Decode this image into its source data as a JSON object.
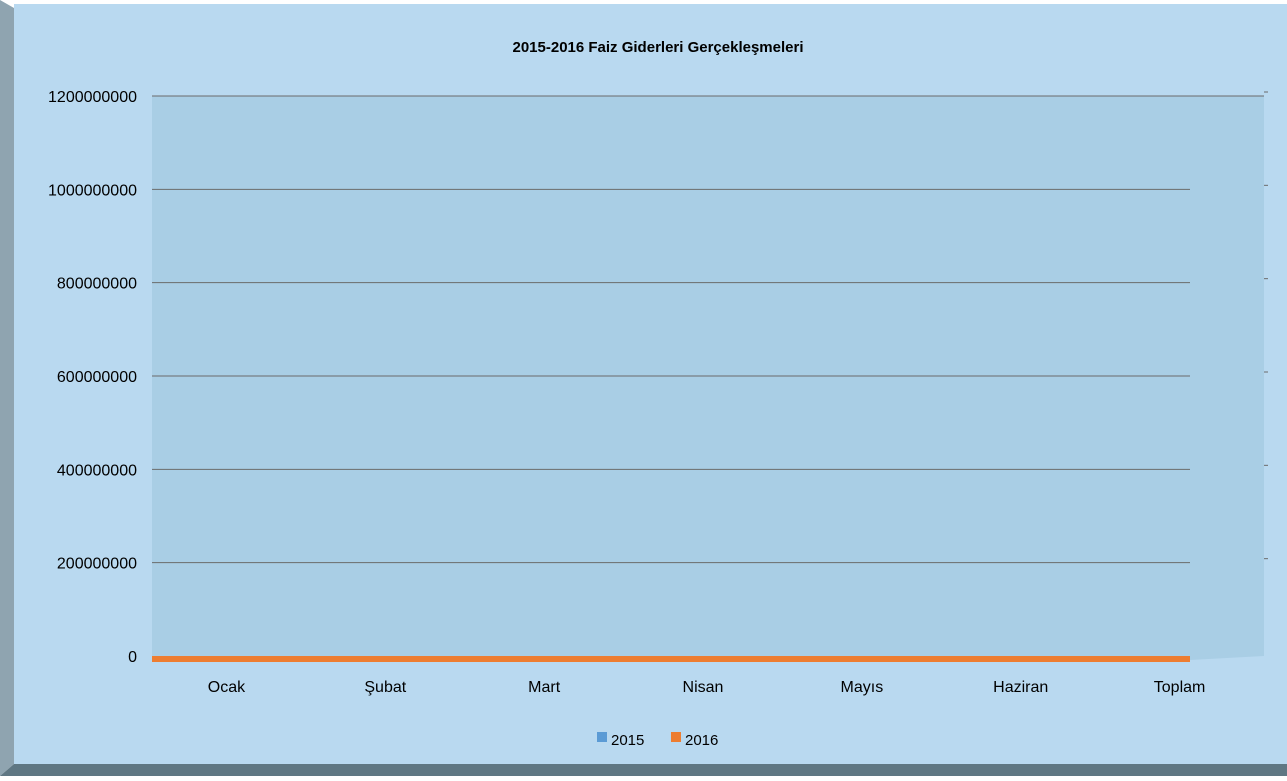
{
  "chart_data": {
    "type": "bar",
    "title": "2015-2016 Faiz Giderleri Gerçekleşmeleri",
    "xlabel": "",
    "ylabel": "",
    "categories": [
      "Ocak",
      "Şubat",
      "Mart",
      "Nisan",
      "Mayıs",
      "Haziran",
      "Toplam"
    ],
    "series": [
      {
        "name": "2015",
        "values": [
          0,
          0,
          0,
          0,
          0,
          0,
          0
        ],
        "color": "#5B9BD5"
      },
      {
        "name": "2016",
        "values": [
          0,
          0,
          0,
          0,
          0,
          0,
          0
        ],
        "color": "#ED7D31"
      }
    ],
    "ylim": [
      0,
      1200000000
    ],
    "yticks": [
      "0",
      "200000000",
      "400000000",
      "600000000",
      "800000000",
      "1000000000",
      "1200000000"
    ],
    "grid": true,
    "legend_position": "bottom",
    "colors": {
      "outer_background": "#B9D9F0",
      "plot_background": "#A9CEE5",
      "frame_shadow": "#5F7783",
      "gridline": "#6B6B6B"
    }
  }
}
